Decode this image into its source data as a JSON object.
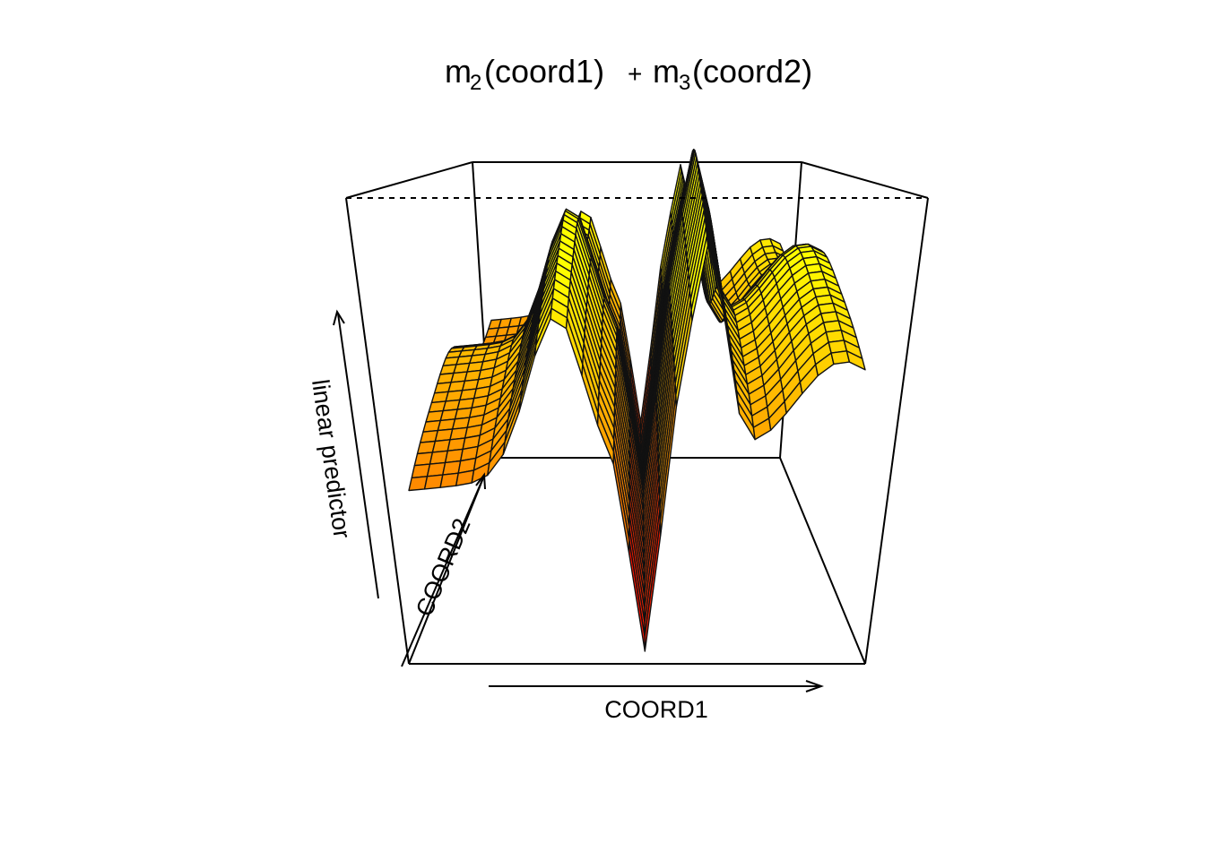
{
  "chart_data": {
    "type": "surface3d",
    "title": {
      "part1_main": "m",
      "part1_sub": "2",
      "part1_arg": "(coord1)",
      "operator": "+",
      "part2_main": "m",
      "part2_sub": "3",
      "part2_arg": "(coord2)"
    },
    "xlabel": "COORD1",
    "ylabel": "COORD2",
    "zlabel": "linear predictor",
    "colormap": [
      "#ff0000",
      "#ff8000",
      "#ffc000",
      "#ffff00"
    ],
    "grid_size": [
      30,
      30
    ],
    "ranges": {
      "x": [
        0,
        1
      ],
      "y": [
        0,
        1
      ],
      "z": [
        -1.6,
        1.6
      ]
    },
    "axis_ticks_shown": false,
    "surface_description": "additive smooth of coord1 and coord2; peaks near coord1 0.3, 0.55 and 0.65, deep trough near coord1 0.52"
  }
}
